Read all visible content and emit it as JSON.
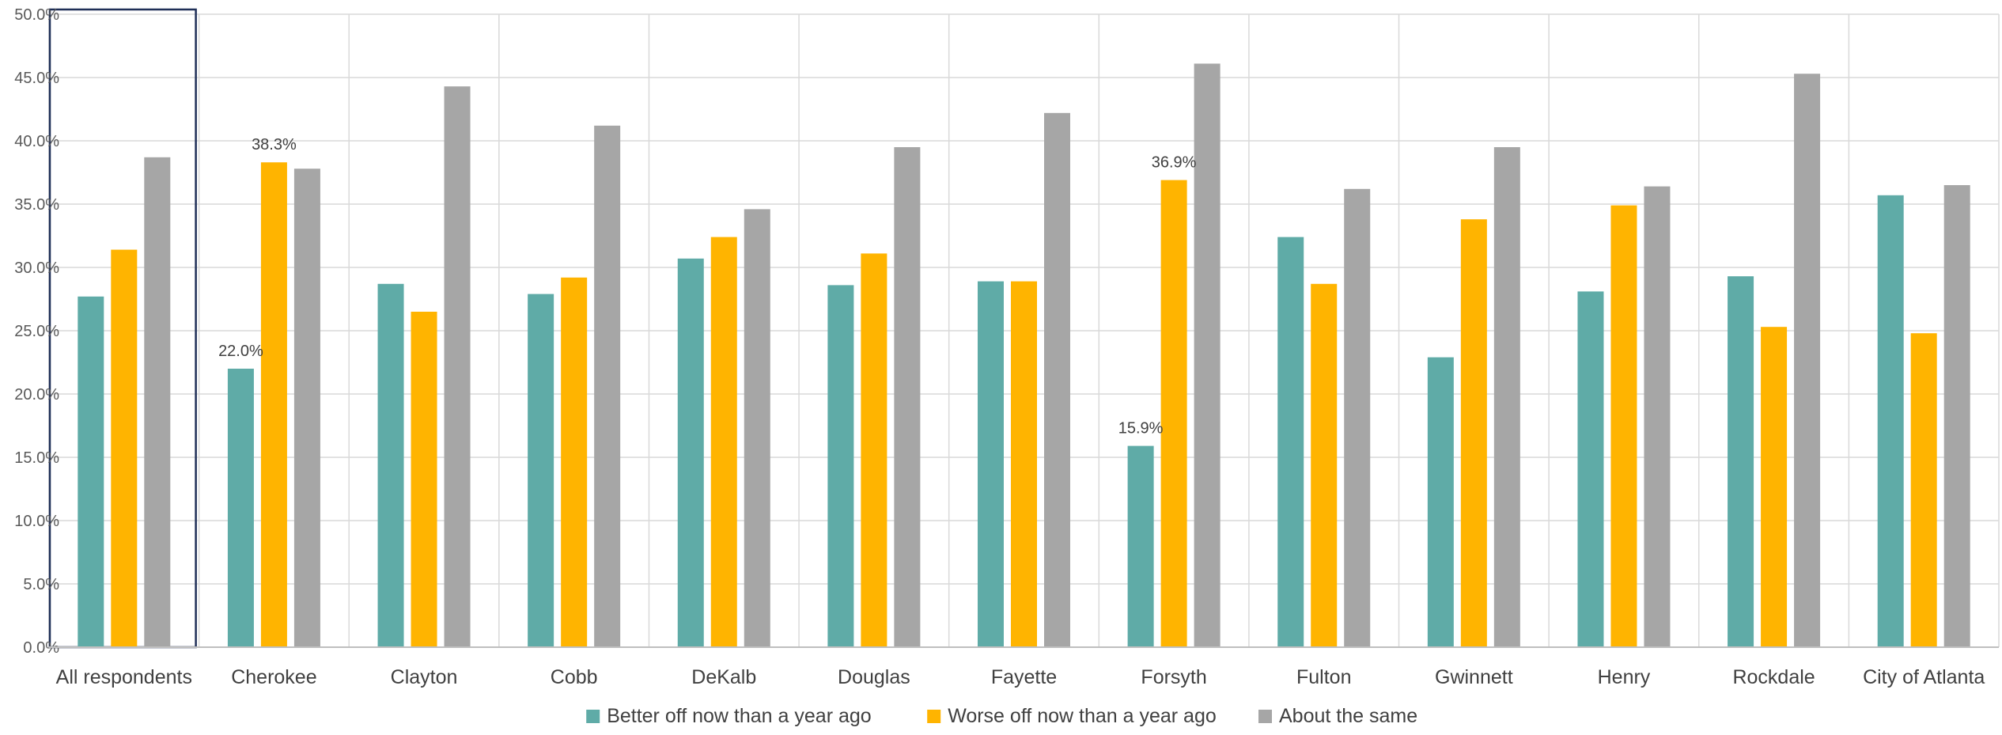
{
  "chart_data": {
    "type": "bar",
    "title": "",
    "xlabel": "",
    "ylabel": "",
    "ylim": [
      0,
      50
    ],
    "ytick_step": 5,
    "ytick_labels": [
      "0.0%",
      "5.0%",
      "10.0%",
      "15.0%",
      "20.0%",
      "25.0%",
      "30.0%",
      "35.0%",
      "40.0%",
      "45.0%",
      "50.0%"
    ],
    "grid": true,
    "legend_position": "bottom",
    "highlighted_category": "All respondents",
    "categories": [
      "All respondents",
      "Cherokee",
      "Clayton",
      "Cobb",
      "DeKalb",
      "Douglas",
      "Fayette",
      "Forsyth",
      "Fulton",
      "Gwinnett",
      "Henry",
      "Rockdale",
      "City of Atlanta"
    ],
    "series": [
      {
        "name": "Better off now than a year ago",
        "color": "#5FABA7",
        "values": [
          27.7,
          22.0,
          28.7,
          27.9,
          30.7,
          28.6,
          28.9,
          15.9,
          32.4,
          22.9,
          28.1,
          29.3,
          35.7
        ]
      },
      {
        "name": "Worse off now than a year ago",
        "color": "#FFB400",
        "values": [
          31.4,
          38.3,
          26.5,
          29.2,
          32.4,
          31.1,
          28.9,
          36.9,
          28.7,
          33.8,
          34.9,
          25.3,
          24.8
        ]
      },
      {
        "name": "About the same",
        "color": "#A6A6A6",
        "values": [
          38.7,
          37.8,
          44.3,
          41.2,
          34.6,
          39.5,
          42.2,
          46.1,
          36.2,
          39.5,
          36.4,
          45.3,
          36.5
        ]
      }
    ],
    "data_labels": [
      {
        "category": "Cherokee",
        "series": 0,
        "text": "22.0%"
      },
      {
        "category": "Cherokee",
        "series": 1,
        "text": "38.3%"
      },
      {
        "category": "Forsyth",
        "series": 0,
        "text": "15.9%"
      },
      {
        "category": "Forsyth",
        "series": 1,
        "text": "36.9%"
      }
    ]
  }
}
